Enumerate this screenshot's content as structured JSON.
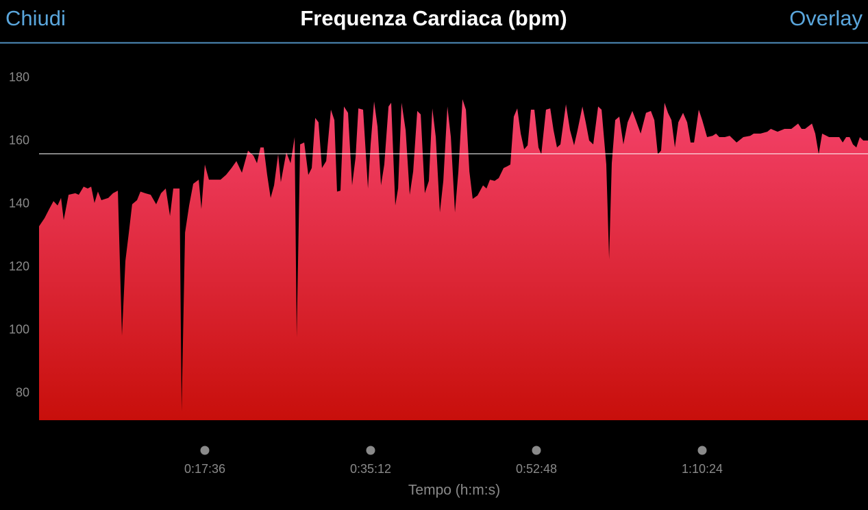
{
  "header": {
    "left": "Chiudi",
    "right": "Overlay"
  },
  "chart_data": {
    "type": "area",
    "title": "Frequenza Cardiaca (bpm)",
    "x_label": "Tempo (h:m:s)",
    "x": [
      0,
      35,
      65,
      92,
      118,
      140,
      157,
      188,
      231,
      253,
      284,
      310,
      332,
      353,
      375,
      397,
      441,
      471,
      502,
      528,
      550,
      572,
      593,
      624,
      646,
      676,
      711,
      746,
      777,
      807,
      834,
      855,
      895,
      908,
      930,
      956,
      982,
      1017,
      1034,
      1056,
      1082,
      1126,
      1156,
      1191,
      1226,
      1257,
      1292,
      1331,
      1366,
      1388,
      1410,
      1431,
      1453,
      1475,
      1497,
      1523,
      1540,
      1575,
      1602,
      1628,
      1641,
      1663,
      1689,
      1715,
      1737,
      1759,
      1780,
      1802,
      1829,
      1859,
      1881,
      1898,
      1920,
      1942,
      1968,
      1994,
      2016,
      2034,
      2064,
      2095,
      2112,
      2134,
      2156,
      2178,
      2199,
      2226,
      2243,
      2269,
      2287,
      2309,
      2335,
      2361,
      2383,
      2409,
      2431,
      2457,
      2483,
      2505,
      2527,
      2553,
      2575,
      2601,
      2623,
      2649,
      2671,
      2697,
      2719,
      2741,
      2762,
      2793,
      2828,
      2850,
      2872,
      2902,
      2928,
      2959,
      2981,
      3002,
      3024,
      3046,
      3068,
      3090,
      3112,
      3133,
      3155,
      3181,
      3199,
      3229,
      3256,
      3277,
      3299,
      3321,
      3356,
      3382,
      3408,
      3430,
      3461,
      3482,
      3504,
      3530,
      3561,
      3583,
      3613,
      3631,
      3648,
      3670,
      3696,
      3722,
      3749,
      3779,
      3801,
      3832,
      3866,
      3897,
      3919,
      3941,
      3962,
      3984,
      4006,
      4028,
      4050,
      4072,
      4102,
      4128,
      4150,
      4172,
      4202,
      4224,
      4255,
      4290,
      4312,
      4333,
      4368,
      4399,
      4443,
      4486,
      4530,
      4552,
      4595,
      4639,
      4661,
      4704,
      4748,
      4792,
      4835,
      4857,
      4879,
      4923,
      4944,
      4966,
      4988,
      5032,
      5097,
      5119,
      5141,
      5163,
      5184,
      5206,
      5228,
      5250,
      5280
    ],
    "values": [
      133,
      135.6,
      138.5,
      141,
      139.6,
      142,
      135,
      143,
      143.5,
      143,
      145.6,
      145,
      145.6,
      140.4,
      144,
      141.3,
      142,
      143.5,
      144.3,
      98.3,
      122,
      131,
      140,
      141.3,
      144,
      143.5,
      143,
      140,
      143.5,
      145,
      136.3,
      145,
      145,
      74.3,
      131,
      139.6,
      146.5,
      147.8,
      138.5,
      152.6,
      147.8,
      147.8,
      147.8,
      149.3,
      151.5,
      153.7,
      150,
      157,
      155.4,
      153,
      158,
      158,
      149.3,
      142,
      146,
      155.9,
      147,
      156.5,
      153,
      161.3,
      97.8,
      159,
      159.6,
      149.3,
      151.5,
      167.4,
      166,
      151.5,
      153.7,
      170,
      166.7,
      144,
      144.3,
      171,
      169,
      146,
      154.8,
      170.4,
      170,
      145,
      159,
      172.6,
      164.6,
      146,
      152.6,
      171,
      172.2,
      139.6,
      145,
      172.2,
      163.5,
      143,
      150.4,
      169.6,
      168.5,
      143.5,
      147.4,
      170.4,
      161.3,
      137.4,
      147.4,
      171,
      161.3,
      137.4,
      150.4,
      173.3,
      170,
      150.4,
      141.7,
      142.8,
      146,
      145,
      147.8,
      147.4,
      148.3,
      151.5,
      152,
      152.6,
      167.8,
      170.4,
      162.4,
      157.4,
      158.7,
      170,
      170,
      158,
      155.9,
      170,
      170.4,
      163.5,
      158,
      159,
      171.7,
      163.5,
      158.7,
      163.5,
      171,
      166,
      160.2,
      159,
      171,
      170,
      152.6,
      122.6,
      153,
      166.7,
      167.8,
      159,
      166,
      169.6,
      166.7,
      162.4,
      169,
      169.6,
      166.7,
      155.9,
      157,
      172.2,
      169,
      166.7,
      158,
      166,
      169,
      166,
      159.6,
      159.6,
      170,
      166.7,
      161.3,
      161.7,
      162.4,
      161.3,
      161.3,
      161.7,
      159.6,
      161.3,
      161.7,
      162.4,
      162.4,
      163,
      163.9,
      163,
      163.9,
      163.9,
      165.6,
      163.9,
      163.9,
      165.6,
      162.4,
      155.9,
      162.4,
      161.3,
      161.3,
      159.6,
      161.3,
      161.3,
      159,
      158,
      161.3,
      160.2,
      160.2
    ],
    "gradient": [
      "#f5436c",
      "#c80f0b"
    ],
    "reference_line": 156,
    "xlim": [
      0,
      5280
    ],
    "ylim": [
      71.5,
      190
    ],
    "xticks": [
      {
        "value": 1056,
        "label": "0:17:36"
      },
      {
        "value": 2112,
        "label": "0:35:12"
      },
      {
        "value": 3168,
        "label": "0:52:48"
      },
      {
        "value": 4224,
        "label": "1:10:24"
      }
    ],
    "yticks": [
      80,
      100,
      120,
      140,
      160,
      180
    ]
  }
}
